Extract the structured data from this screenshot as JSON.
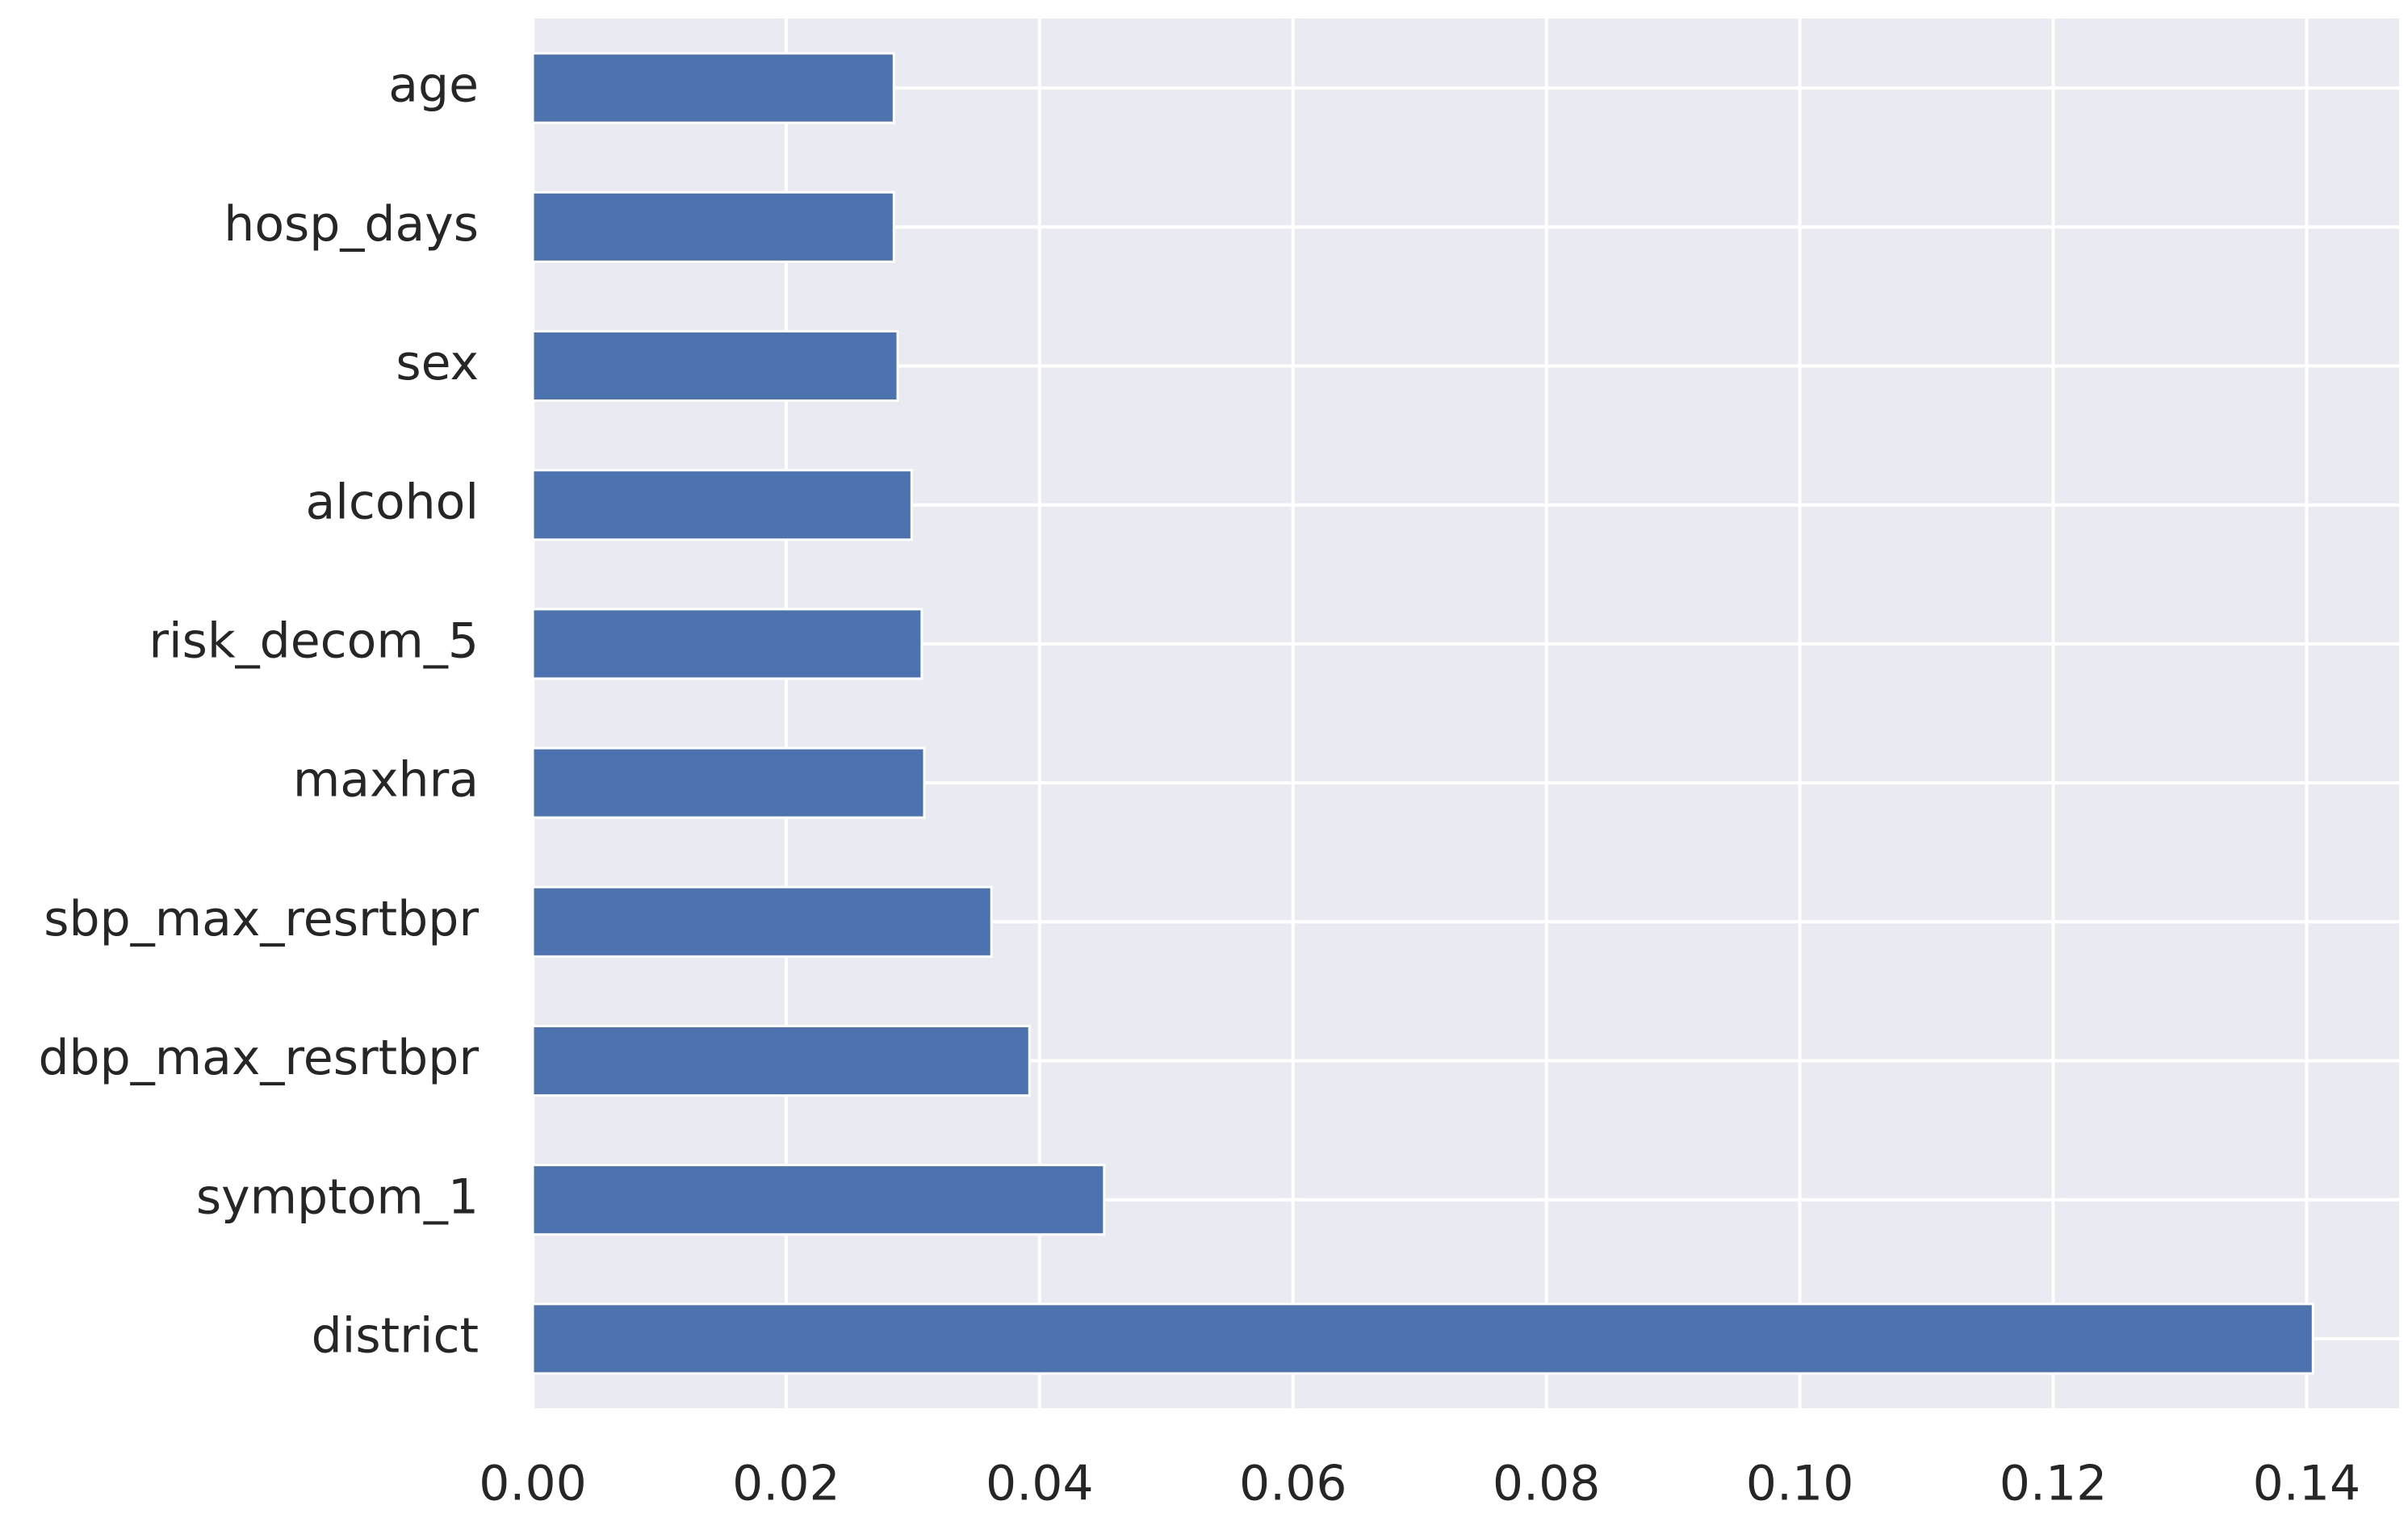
{
  "chart_data": {
    "type": "barh",
    "categories": [
      "age",
      "hosp_days",
      "sex",
      "alcohol",
      "risk_decom_5",
      "maxhra",
      "sbp_max_resrtbpr",
      "dbp_max_resrtbpr",
      "symptom_1",
      "district"
    ],
    "values": [
      0.0285,
      0.0285,
      0.0288,
      0.0299,
      0.0307,
      0.0309,
      0.0362,
      0.0392,
      0.0451,
      0.1405
    ],
    "color": "#4c72b0",
    "xlim": [
      0,
      0.1473
    ],
    "xticks": [
      {
        "value": 0,
        "label": "0.00"
      },
      0.02,
      0.04,
      0.06,
      0.08,
      {
        "value": 0.1,
        "label": "0.10"
      },
      0.12,
      0.14
    ],
    "grid": true
  }
}
